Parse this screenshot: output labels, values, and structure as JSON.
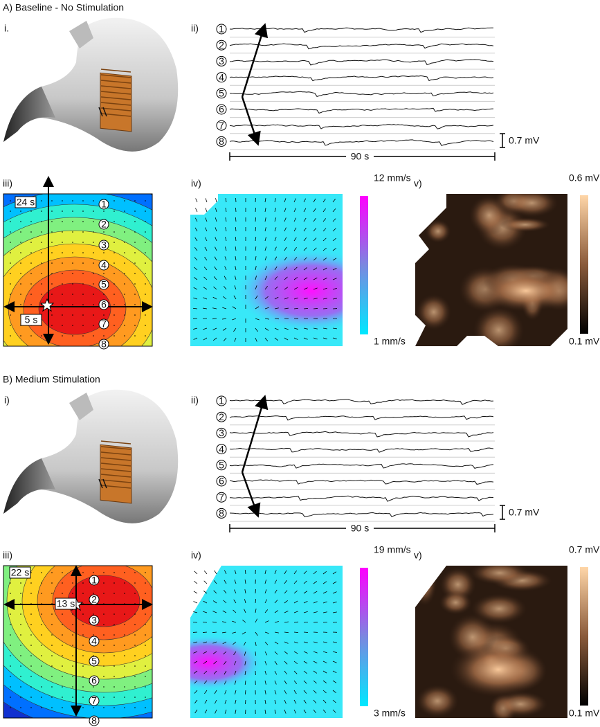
{
  "panels": [
    {
      "title": "A) Baseline - No Stimulation",
      "stomach_label": "i.",
      "traces": {
        "label": "ii)",
        "channels": [
          "1",
          "2",
          "3",
          "4",
          "5",
          "6",
          "7",
          "8"
        ],
        "scale": "0.7 mV",
        "time": "90 s"
      },
      "isochrone": {
        "label": "iii)",
        "top_time": "24 s",
        "cross_time": "5 s",
        "channels": [
          "1",
          "2",
          "3",
          "4",
          "5",
          "6",
          "7",
          "8"
        ]
      },
      "velocity": {
        "label": "iv)",
        "max": "12 mm/s",
        "min": "1 mm/s"
      },
      "amplitude": {
        "label": "v)",
        "max": "0.6 mV",
        "min": "0.1 mV"
      }
    },
    {
      "title": "B) Medium Stimulation",
      "stomach_label": "i)",
      "traces": {
        "label": "ii)",
        "channels": [
          "1",
          "2",
          "3",
          "4",
          "5",
          "6",
          "7",
          "8"
        ],
        "scale": "0.7 mV",
        "time": "90 s"
      },
      "isochrone": {
        "label": "iii)",
        "top_time": "22 s",
        "cross_time": "13 s",
        "channels": [
          "1",
          "2",
          "3",
          "4",
          "5",
          "6",
          "7",
          "8"
        ]
      },
      "velocity": {
        "label": "iv)",
        "max": "19 mm/s",
        "min": "3 mm/s"
      },
      "amplitude": {
        "label": "v)",
        "max": "0.7 mV",
        "min": "0.1 mV"
      }
    }
  ]
}
